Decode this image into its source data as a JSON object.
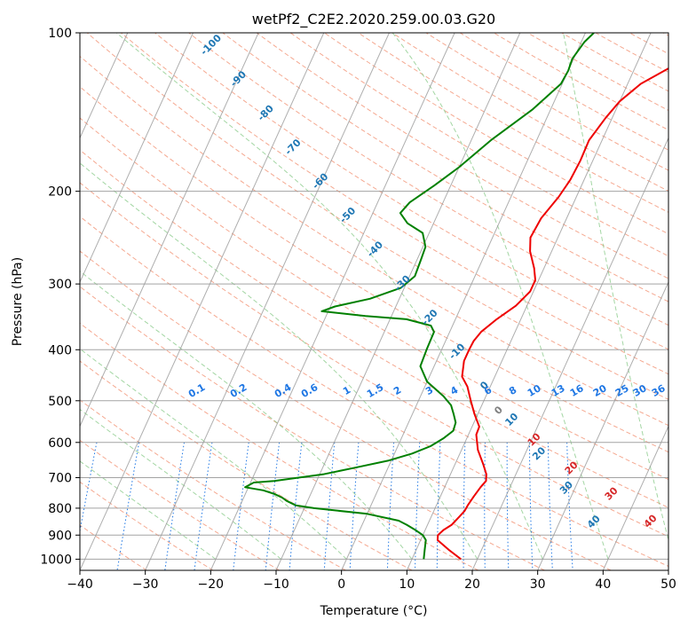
{
  "chart_data": {
    "type": "line",
    "title": "wetPf2_C2E2.2020.259.00.03.G20",
    "xlabel": "Temperature (°C)",
    "ylabel": "Pressure (hPa)",
    "xlim": [
      -40,
      50
    ],
    "ylim": [
      1050,
      100
    ],
    "y_scale": "log",
    "grid": true,
    "x_ticks": [
      -40,
      -30,
      -20,
      -10,
      0,
      10,
      20,
      30,
      40,
      50
    ],
    "x_tick_labels": [
      "−40",
      "−30",
      "−20",
      "−10",
      "0",
      "10",
      "20",
      "30",
      "40",
      "50"
    ],
    "y_ticks": [
      100,
      200,
      300,
      400,
      500,
      600,
      700,
      800,
      900,
      1000
    ],
    "y_tick_labels": [
      "100",
      "200",
      "300",
      "400",
      "500",
      "600",
      "700",
      "800",
      "900",
      "1000"
    ],
    "series": [
      {
        "color": "#ee0000",
        "points": [
          [
            17.5,
            1000
          ],
          [
            15.0,
            960
          ],
          [
            12.6,
            920
          ],
          [
            12.3,
            900
          ],
          [
            12.8,
            880
          ],
          [
            13.7,
            860
          ],
          [
            14.3,
            830
          ],
          [
            14.7,
            810
          ],
          [
            14.8,
            790
          ],
          [
            15.1,
            760
          ],
          [
            15.5,
            730
          ],
          [
            15.9,
            710
          ],
          [
            15.5,
            690
          ],
          [
            14.3,
            660
          ],
          [
            12.5,
            620
          ],
          [
            11.2,
            580
          ],
          [
            11.1,
            560
          ],
          [
            9.5,
            530
          ],
          [
            8.0,
            500
          ],
          [
            6.5,
            470
          ],
          [
            5.0,
            450
          ],
          [
            4.2,
            420
          ],
          [
            4.2,
            400
          ],
          [
            4.3,
            385
          ],
          [
            4.8,
            370
          ],
          [
            6.3,
            350
          ],
          [
            8.3,
            330
          ],
          [
            9.5,
            310
          ],
          [
            9.5,
            295
          ],
          [
            8.5,
            280
          ],
          [
            6.7,
            260
          ],
          [
            5.8,
            245
          ],
          [
            6.1,
            225
          ],
          [
            7.3,
            205
          ],
          [
            7.9,
            190
          ],
          [
            8.1,
            175
          ],
          [
            8.0,
            160
          ],
          [
            9.0,
            145
          ],
          [
            10.0,
            135
          ],
          [
            12.0,
            125
          ],
          [
            15.5,
            116
          ],
          [
            18.0,
            110
          ],
          [
            20.5,
            103
          ],
          [
            21.0,
            100
          ]
        ]
      },
      {
        "color": "#008000",
        "points": [
          [
            11.8,
            1000
          ],
          [
            11.3,
            960
          ],
          [
            10.8,
            920
          ],
          [
            10.0,
            900
          ],
          [
            8.5,
            880
          ],
          [
            6.8,
            860
          ],
          [
            5.3,
            845
          ],
          [
            0.0,
            820
          ],
          [
            -8.5,
            800
          ],
          [
            -11.5,
            790
          ],
          [
            -13.2,
            775
          ],
          [
            -14.0,
            765
          ],
          [
            -15.5,
            752
          ],
          [
            -17.5,
            740
          ],
          [
            -20.5,
            730
          ],
          [
            -19.5,
            715
          ],
          [
            -16.5,
            710
          ],
          [
            -9.5,
            690
          ],
          [
            -5.0,
            670
          ],
          [
            -0.5,
            650
          ],
          [
            2.7,
            630
          ],
          [
            5.0,
            610
          ],
          [
            6.4,
            590
          ],
          [
            7.4,
            570
          ],
          [
            7.2,
            550
          ],
          [
            6.3,
            530
          ],
          [
            5.3,
            510
          ],
          [
            3.5,
            490
          ],
          [
            0.0,
            460
          ],
          [
            -2.1,
            430
          ],
          [
            -2.3,
            400
          ],
          [
            -2.4,
            370
          ],
          [
            -3.3,
            360
          ],
          [
            -7.5,
            350
          ],
          [
            -14.0,
            345
          ],
          [
            -21.0,
            338
          ],
          [
            -19.3,
            331
          ],
          [
            -14.5,
            320
          ],
          [
            -10.5,
            305
          ],
          [
            -9.2,
            290
          ],
          [
            -9.4,
            270
          ],
          [
            -9.6,
            255
          ],
          [
            -11.0,
            240
          ],
          [
            -14.0,
            230
          ],
          [
            -15.8,
            220
          ],
          [
            -15.1,
            210
          ],
          [
            -12.5,
            195
          ],
          [
            -10.0,
            180
          ],
          [
            -7.0,
            160
          ],
          [
            -2.8,
            140
          ],
          [
            -0.2,
            125
          ],
          [
            0.0,
            118
          ],
          [
            -0.2,
            112
          ],
          [
            0.5,
            104
          ],
          [
            1.3,
            100
          ]
        ]
      }
    ],
    "dry_adiabats_K": [
      210,
      220,
      230,
      240,
      250,
      260,
      270,
      280,
      290,
      300,
      310,
      320,
      330,
      340,
      350,
      360,
      370,
      380,
      390,
      400,
      410,
      420,
      430,
      440,
      450,
      460,
      470,
      480,
      490,
      500,
      510,
      520,
      530,
      540,
      550,
      560
    ],
    "dry_adiabat_labels": [
      "-100",
      "-90",
      "-80",
      "-70",
      "-60",
      "-50",
      "-40",
      "-30",
      "-20",
      "-10",
      "0",
      "10",
      "20",
      "30",
      "40"
    ],
    "moist_adiabats_C": [
      -20,
      -10,
      0,
      10,
      20,
      30,
      40,
      50
    ],
    "mixing_ratio_lines": [
      0.1,
      0.2,
      0.4,
      0.6,
      1,
      1.5,
      2,
      3,
      4,
      6,
      8,
      10,
      13,
      16,
      20,
      25,
      30,
      36
    ],
    "mixing_ratio_labels": [
      "0.1",
      "0.2",
      "0.4",
      "0.6",
      "1",
      "1.5",
      "2",
      "3",
      "4",
      "6",
      "8",
      "10",
      "13",
      "16",
      "20",
      "25",
      "30",
      "36"
    ],
    "colors": {
      "temperature": "#ee0000",
      "dewpoint": "#008000",
      "dry_adiabat": "#f28c6c",
      "moist_adiabat": "#7cc47c",
      "mixing_ratio": "#1f77e4",
      "label_blue": "#1f77b4",
      "label_red": "#d62728",
      "label_gray": "#7f7f7f"
    }
  }
}
